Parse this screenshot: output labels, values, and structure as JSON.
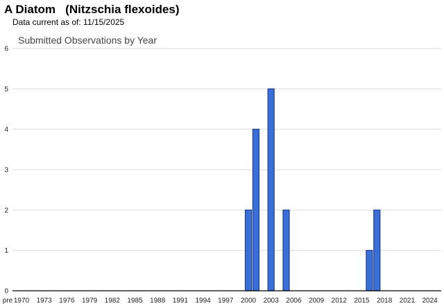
{
  "header": {
    "common_name": "A Diatom",
    "scientific_name": "(Nitzschia flexoides)",
    "data_current": "Data current as of: 11/15/2025"
  },
  "colors": {
    "bar_fill": "#3b6fd8",
    "bar_stroke": "#1f3f8a",
    "grid": "#dcdcdc"
  },
  "chart_data": {
    "type": "bar",
    "title": "Submitted Observations by Year",
    "xlabel": "",
    "ylabel": "",
    "ylim": [
      0,
      6
    ],
    "yticks": [
      0,
      1,
      2,
      3,
      4,
      5,
      6
    ],
    "grid": true,
    "x_tick_labels": [
      "pre",
      "1970",
      "1973",
      "1976",
      "1979",
      "1982",
      "1985",
      "1988",
      "1991",
      "1994",
      "1997",
      "2000",
      "2003",
      "2006",
      "2009",
      "2012",
      "2015",
      "2018",
      "2021",
      "2024"
    ],
    "categories": [
      "pre",
      "1970",
      "1971",
      "1972",
      "1973",
      "1974",
      "1975",
      "1976",
      "1977",
      "1978",
      "1979",
      "1980",
      "1981",
      "1982",
      "1983",
      "1984",
      "1985",
      "1986",
      "1987",
      "1988",
      "1989",
      "1990",
      "1991",
      "1992",
      "1993",
      "1994",
      "1995",
      "1996",
      "1997",
      "1998",
      "1999",
      "2000",
      "2001",
      "2002",
      "2003",
      "2004",
      "2005",
      "2006",
      "2007",
      "2008",
      "2009",
      "2010",
      "2011",
      "2012",
      "2013",
      "2014",
      "2015",
      "2016",
      "2017",
      "2018",
      "2019",
      "2020",
      "2021",
      "2022",
      "2023",
      "2024",
      "2025",
      "2026"
    ],
    "values": [
      0,
      0,
      0,
      0,
      0,
      0,
      0,
      0,
      0,
      0,
      0,
      0,
      0,
      0,
      0,
      0,
      0,
      0,
      0,
      0,
      0,
      0,
      0,
      0,
      0,
      0,
      0,
      0,
      0,
      0,
      0,
      2,
      4,
      0,
      5,
      0,
      2,
      0,
      0,
      0,
      0,
      0,
      0,
      0,
      0,
      0,
      0,
      1,
      2,
      0,
      0,
      0,
      0,
      0,
      0,
      0,
      0,
      0
    ]
  }
}
